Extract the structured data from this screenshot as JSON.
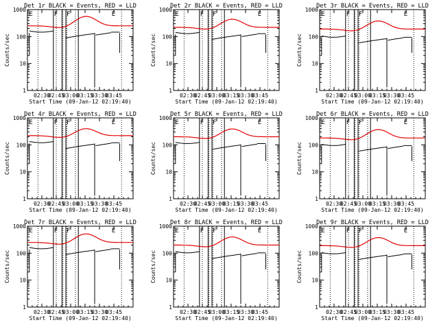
{
  "figure": {
    "title_template": "Det {det} BLACK = Events, RED = LLD",
    "xlabel": "Start Time (09-Jan-12 02:19:40)",
    "ylabel": "Counts/sec",
    "colors": {
      "events": "#000000",
      "lld": "#e00000",
      "axes": "#000000",
      "background": "#ffffff"
    }
  },
  "chart_data": [
    {
      "det": "1r",
      "events_base": 170,
      "events_scale": 0.95,
      "lld_base": 250,
      "lld_peak": 560
    },
    {
      "det": "2r",
      "events_base": 150,
      "events_scale": 0.95,
      "lld_base": 220,
      "lld_peak": 440
    },
    {
      "det": "3r",
      "events_base": 110,
      "events_scale": 0.95,
      "lld_base": 190,
      "lld_peak": 380
    },
    {
      "det": "4r",
      "events_base": 140,
      "events_scale": 0.95,
      "lld_base": 220,
      "lld_peak": 400
    },
    {
      "det": "5r",
      "events_base": 130,
      "events_scale": 0.95,
      "lld_base": 200,
      "lld_peak": 390
    },
    {
      "det": "6r",
      "events_base": 110,
      "events_scale": 0.95,
      "lld_base": 180,
      "lld_peak": 370
    },
    {
      "det": "7r",
      "events_base": 170,
      "events_scale": 0.95,
      "lld_base": 250,
      "lld_peak": 520
    },
    {
      "det": "8r",
      "events_base": 120,
      "events_scale": 0.95,
      "lld_base": 200,
      "lld_peak": 400
    },
    {
      "det": "9r",
      "events_base": 110,
      "events_scale": 0.95,
      "lld_base": 190,
      "lld_peak": 380
    }
  ],
  "axes": {
    "type": "line",
    "yscale": "log",
    "ylim": [
      1,
      1000
    ],
    "ytick_values": [
      1,
      10,
      100,
      1000
    ],
    "ytick_labels": [
      "1",
      "10",
      "100",
      "1000"
    ],
    "xlim_min": [
      135,
      245
    ],
    "xtick_values_min": [
      150,
      165,
      180,
      195,
      210,
      225
    ],
    "xtick_labels": [
      "02:30",
      "02:45",
      "03:00",
      "03:15",
      "03:30",
      "03:45"
    ],
    "saa_boundaries_min": [
      162,
      171,
      175,
      188
    ],
    "dotted_lines_min": [
      146,
      165,
      172,
      176,
      185,
      233
    ],
    "flags": [
      {
        "text": "E",
        "at_min": 136
      },
      {
        "text": "F",
        "at_min": 162
      },
      {
        "text": "F",
        "at_min": 175
      },
      {
        "text": "E",
        "at_min": 222
      }
    ]
  }
}
